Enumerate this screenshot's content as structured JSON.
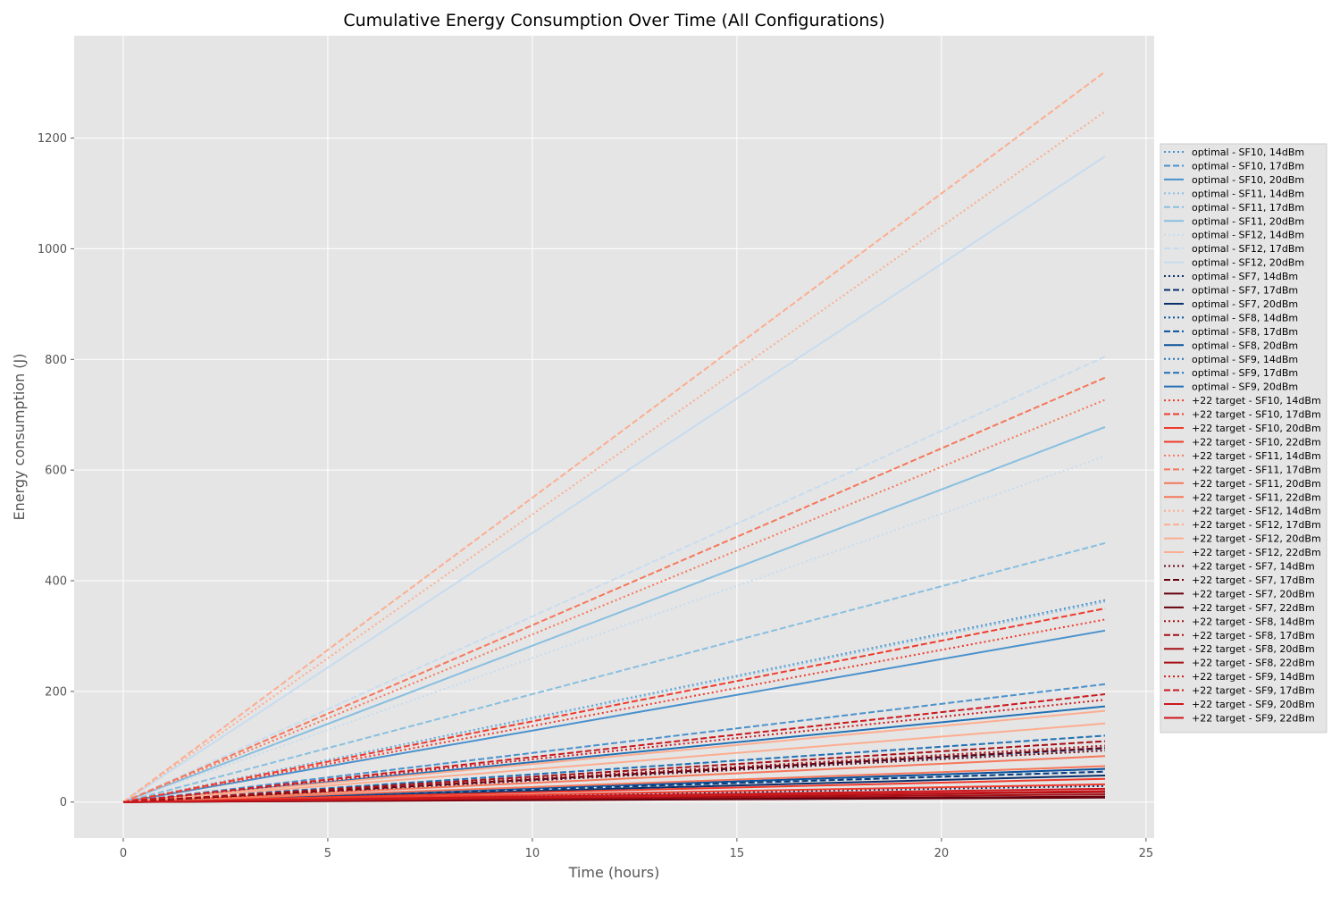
{
  "chart_data": {
    "type": "line",
    "title": "Cumulative Energy Consumption Over Time (All Configurations)",
    "xlabel": "Time (hours)",
    "ylabel": "Energy consumption (J)",
    "xlim": [
      -1.2,
      25.2
    ],
    "ylim": [
      -65,
      1385
    ],
    "xticks": [
      0,
      5,
      10,
      15,
      20,
      25
    ],
    "yticks": [
      0,
      200,
      400,
      600,
      800,
      1000,
      1200
    ],
    "grid": true,
    "legend_position": "right",
    "x": [
      0,
      24
    ],
    "series": [
      {
        "name": "optimal - SF10, 14dBm",
        "values": [
          0,
          365
        ],
        "color": "#4a91cd",
        "dash": "dotted"
      },
      {
        "name": "optimal - SF10, 17dBm",
        "values": [
          0,
          213
        ],
        "color": "#4a91cd",
        "dash": "dashed"
      },
      {
        "name": "optimal - SF10, 20dBm",
        "values": [
          0,
          310
        ],
        "color": "#4a91cd",
        "dash": "solid"
      },
      {
        "name": "optimal - SF11, 14dBm",
        "values": [
          0,
          362
        ],
        "color": "#88bfe0",
        "dash": "dotted"
      },
      {
        "name": "optimal - SF11, 17dBm",
        "values": [
          0,
          468
        ],
        "color": "#88bfe0",
        "dash": "dashed"
      },
      {
        "name": "optimal - SF11, 20dBm",
        "values": [
          0,
          678
        ],
        "color": "#88bfe0",
        "dash": "solid"
      },
      {
        "name": "optimal - SF12, 14dBm",
        "values": [
          0,
          625
        ],
        "color": "#c7dcef",
        "dash": "dotted"
      },
      {
        "name": "optimal - SF12, 17dBm",
        "values": [
          0,
          805
        ],
        "color": "#c7dcef",
        "dash": "dashed"
      },
      {
        "name": "optimal - SF12, 20dBm",
        "values": [
          0,
          1167
        ],
        "color": "#c7dcef",
        "dash": "solid"
      },
      {
        "name": "optimal - SF7, 14dBm",
        "values": [
          0,
          29
        ],
        "color": "#08306b",
        "dash": "dotted"
      },
      {
        "name": "optimal - SF7, 17dBm",
        "values": [
          0,
          55
        ],
        "color": "#08306b",
        "dash": "dashed"
      },
      {
        "name": "optimal - SF7, 20dBm",
        "values": [
          0,
          48
        ],
        "color": "#08306b",
        "dash": "solid"
      },
      {
        "name": "optimal - SF8, 14dBm",
        "values": [
          0,
          55
        ],
        "color": "#08519c",
        "dash": "dotted"
      },
      {
        "name": "optimal - SF8, 17dBm",
        "values": [
          0,
          97
        ],
        "color": "#08519c",
        "dash": "dashed"
      },
      {
        "name": "optimal - SF8, 20dBm",
        "values": [
          0,
          60
        ],
        "color": "#08519c",
        "dash": "solid"
      },
      {
        "name": "optimal - SF9, 14dBm",
        "values": [
          0,
          98
        ],
        "color": "#2171b5",
        "dash": "dotted"
      },
      {
        "name": "optimal - SF9, 17dBm",
        "values": [
          0,
          120
        ],
        "color": "#2171b5",
        "dash": "dashed"
      },
      {
        "name": "optimal - SF9, 20dBm",
        "values": [
          0,
          173
        ],
        "color": "#2171b5",
        "dash": "solid"
      },
      {
        "name": "+22 target - SF10, 14dBm",
        "values": [
          0,
          330
        ],
        "color": "#ef3b2c",
        "dash": "dotted"
      },
      {
        "name": "+22 target - SF10, 17dBm",
        "values": [
          0,
          350
        ],
        "color": "#ef3b2c",
        "dash": "dashed"
      },
      {
        "name": "+22 target - SF10, 20dBm",
        "values": [
          0,
          42
        ],
        "color": "#ef3b2c",
        "dash": "solid"
      },
      {
        "name": "+22 target - SF10, 22dBm",
        "values": [
          0,
          32
        ],
        "color": "#ef3b2c",
        "dash": "solid"
      },
      {
        "name": "+22 target - SF11, 14dBm",
        "values": [
          0,
          727
        ],
        "color": "#f6775a",
        "dash": "dotted"
      },
      {
        "name": "+22 target - SF11, 17dBm",
        "values": [
          0,
          767
        ],
        "color": "#f6775a",
        "dash": "dashed"
      },
      {
        "name": "+22 target - SF11, 20dBm",
        "values": [
          0,
          83
        ],
        "color": "#f6775a",
        "dash": "solid"
      },
      {
        "name": "+22 target - SF11, 22dBm",
        "values": [
          0,
          65
        ],
        "color": "#f6775a",
        "dash": "solid"
      },
      {
        "name": "+22 target - SF12, 14dBm",
        "values": [
          0,
          1248
        ],
        "color": "#fcad90",
        "dash": "dotted"
      },
      {
        "name": "+22 target - SF12, 17dBm",
        "values": [
          0,
          1320
        ],
        "color": "#fcad90",
        "dash": "dashed"
      },
      {
        "name": "+22 target - SF12, 20dBm",
        "values": [
          0,
          165
        ],
        "color": "#fcad90",
        "dash": "solid"
      },
      {
        "name": "+22 target - SF12, 22dBm",
        "values": [
          0,
          142
        ],
        "color": "#fcad90",
        "dash": "solid"
      },
      {
        "name": "+22 target - SF7, 14dBm",
        "values": [
          0,
          93
        ],
        "color": "#67000d",
        "dash": "dotted"
      },
      {
        "name": "+22 target - SF7, 17dBm",
        "values": [
          0,
          98
        ],
        "color": "#67000d",
        "dash": "dashed"
      },
      {
        "name": "+22 target - SF7, 20dBm",
        "values": [
          0,
          10
        ],
        "color": "#67000d",
        "dash": "solid"
      },
      {
        "name": "+22 target - SF7, 22dBm",
        "values": [
          0,
          8
        ],
        "color": "#67000d",
        "dash": "solid"
      },
      {
        "name": "+22 target - SF8, 14dBm",
        "values": [
          0,
          102
        ],
        "color": "#a50f15",
        "dash": "dotted"
      },
      {
        "name": "+22 target - SF8, 17dBm",
        "values": [
          0,
          110
        ],
        "color": "#a50f15",
        "dash": "dashed"
      },
      {
        "name": "+22 target - SF8, 20dBm",
        "values": [
          0,
          18
        ],
        "color": "#a50f15",
        "dash": "solid"
      },
      {
        "name": "+22 target - SF8, 22dBm",
        "values": [
          0,
          14
        ],
        "color": "#a50f15",
        "dash": "solid"
      },
      {
        "name": "+22 target - SF9, 14dBm",
        "values": [
          0,
          185
        ],
        "color": "#cb181d",
        "dash": "dotted"
      },
      {
        "name": "+22 target - SF9, 17dBm",
        "values": [
          0,
          195
        ],
        "color": "#cb181d",
        "dash": "dashed"
      },
      {
        "name": "+22 target - SF9, 20dBm",
        "values": [
          0,
          24
        ],
        "color": "#cb181d",
        "dash": "solid"
      },
      {
        "name": "+22 target - SF9, 22dBm",
        "values": [
          0,
          20
        ],
        "color": "#cb181d",
        "dash": "solid"
      }
    ]
  }
}
